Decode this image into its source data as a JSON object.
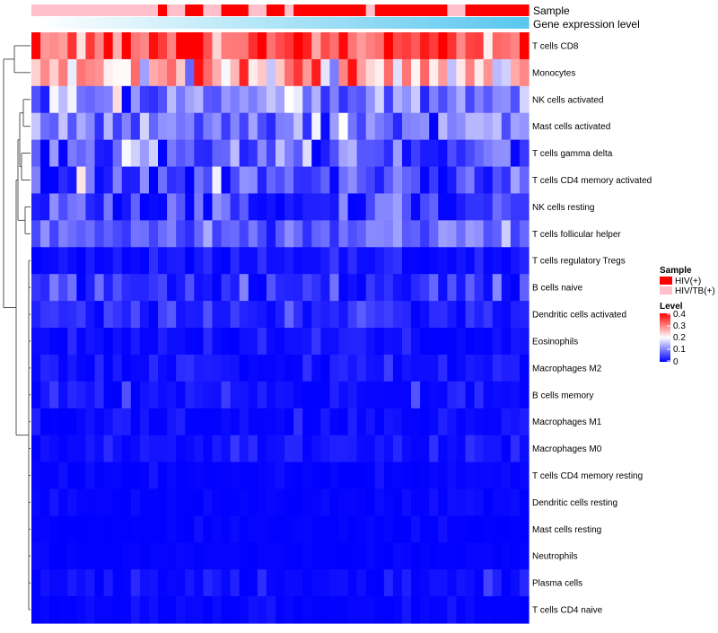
{
  "chart_data": {
    "type": "heatmap",
    "title": "",
    "annotation_tracks": [
      {
        "name": "Sample",
        "label": "Sample"
      },
      {
        "name": "Gene expression level",
        "label": "Gene expression level"
      }
    ],
    "sample_groups": [
      {
        "label": "HIV(+)",
        "color": "#ff0000"
      },
      {
        "label": "HIV/TB(+)",
        "color": "#ffc0cb"
      }
    ],
    "sample_annotation": [
      "HIV/TB(+)",
      "HIV/TB(+)",
      "HIV/TB(+)",
      "HIV/TB(+)",
      "HIV/TB(+)",
      "HIV/TB(+)",
      "HIV/TB(+)",
      "HIV/TB(+)",
      "HIV/TB(+)",
      "HIV/TB(+)",
      "HIV/TB(+)",
      "HIV/TB(+)",
      "HIV/TB(+)",
      "HIV/TB(+)",
      "HIV(+)",
      "HIV/TB(+)",
      "HIV/TB(+)",
      "HIV(+)",
      "HIV(+)",
      "HIV/TB(+)",
      "HIV/TB(+)",
      "HIV(+)",
      "HIV(+)",
      "HIV(+)",
      "HIV/TB(+)",
      "HIV/TB(+)",
      "HIV(+)",
      "HIV(+)",
      "HIV/TB(+)",
      "HIV(+)",
      "HIV(+)",
      "HIV(+)",
      "HIV(+)",
      "HIV(+)",
      "HIV(+)",
      "HIV(+)",
      "HIV(+)",
      "HIV/TB(+)",
      "HIV(+)",
      "HIV(+)",
      "HIV(+)",
      "HIV(+)",
      "HIV(+)",
      "HIV(+)",
      "HIV(+)",
      "HIV(+)",
      "HIV/TB(+)",
      "HIV/TB(+)",
      "HIV(+)",
      "HIV(+)",
      "HIV(+)",
      "HIV(+)",
      "HIV(+)",
      "HIV(+)",
      "HIV(+)"
    ],
    "gene_expression_gradient": {
      "from": "#ffffff",
      "to": "#5bc8ef"
    },
    "legend": {
      "sample_title": "Sample",
      "level_title": "Level",
      "level_ticks": [
        "0.4",
        "0.3",
        "0.2",
        "0.1",
        "0"
      ],
      "colorscale": {
        "min": 0,
        "mid": 0.2,
        "max": 0.4,
        "low": "#0000ff",
        "midcolor": "#ffffff",
        "high": "#ff0000"
      },
      "placement": "right"
    },
    "rows": [
      {
        "label": "T cells CD8",
        "mean": 0.34,
        "sd": 0.06
      },
      {
        "label": "Monocytes",
        "mean": 0.25,
        "sd": 0.07
      },
      {
        "label": "NK cells activated",
        "mean": 0.1,
        "sd": 0.05
      },
      {
        "label": "Mast cells activated",
        "mean": 0.1,
        "sd": 0.05
      },
      {
        "label": "T cells gamma delta",
        "mean": 0.07,
        "sd": 0.06
      },
      {
        "label": "T cells CD4 memory activated",
        "mean": 0.06,
        "sd": 0.05
      },
      {
        "label": "NK cells resting",
        "mean": 0.04,
        "sd": 0.05
      },
      {
        "label": "T cells follicular helper",
        "mean": 0.08,
        "sd": 0.03
      },
      {
        "label": "T cells regulatory  Tregs",
        "mean": 0.01,
        "sd": 0.02
      },
      {
        "label": "B cells naive",
        "mean": 0.04,
        "sd": 0.03
      },
      {
        "label": "Dendritic cells activated",
        "mean": 0.03,
        "sd": 0.02
      },
      {
        "label": "Eosinophils",
        "mean": 0.01,
        "sd": 0.02
      },
      {
        "label": "Macrophages M2",
        "mean": 0.01,
        "sd": 0.02
      },
      {
        "label": "B cells memory",
        "mean": 0.01,
        "sd": 0.02
      },
      {
        "label": "Macrophages M1",
        "mean": 0.01,
        "sd": 0.015
      },
      {
        "label": "Macrophages M0",
        "mean": 0.01,
        "sd": 0.015
      },
      {
        "label": "T cells CD4 memory resting",
        "mean": 0.003,
        "sd": 0.008
      },
      {
        "label": "Dendritic cells resting",
        "mean": 0.003,
        "sd": 0.006
      },
      {
        "label": "Mast cells resting",
        "mean": 0.001,
        "sd": 0.004
      },
      {
        "label": "Neutrophils",
        "mean": 0.001,
        "sd": 0.004
      },
      {
        "label": "Plasma cells",
        "mean": 0.01,
        "sd": 0.015
      },
      {
        "label": "T cells CD4 naive",
        "mean": 0.003,
        "sd": 0.008
      }
    ],
    "n_columns": 55,
    "value_range": [
      0,
      0.4
    ]
  }
}
